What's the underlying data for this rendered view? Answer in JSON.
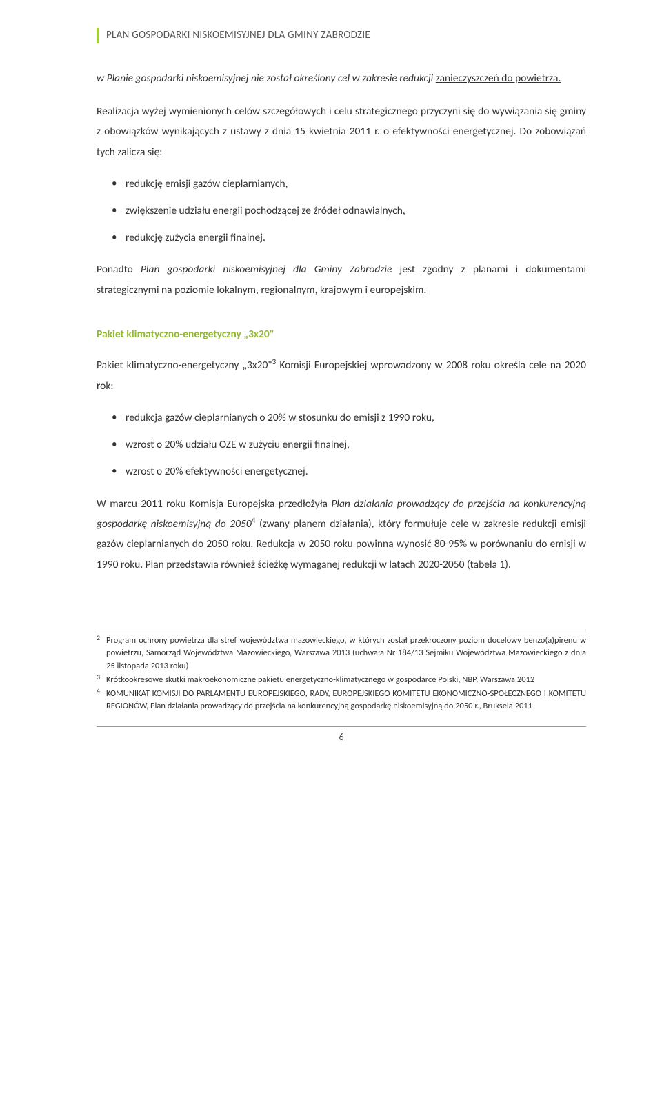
{
  "header": {
    "title": "PLAN GOSPODARKI NISKOEMISYJNEJ DLA GMINY ZABRODZIE"
  },
  "p1_a": "w Planie gospodarki niskoemisyjnej nie został określony cel w zakresie redukcji ",
  "p1_b": "zanieczyszczeń do powietrza.",
  "p2": "Realizacja wyżej wymienionych celów szczegółowych i celu strategicznego przyczyni się do wywiązania się gminy z obowiązków wynikających z ustawy z dnia 15 kwietnia 2011 r. o efektywności energetycznej. Do zobowiązań tych zalicza się:",
  "list1": {
    "i1": "redukcję emisji gazów cieplarnianych,",
    "i2": "zwiększenie udziału energii pochodzącej ze źródeł odnawialnych,",
    "i3": "redukcję zużycia energii finalnej."
  },
  "p3_a": "Ponadto ",
  "p3_b": "Plan gospodarki niskoemisyjnej dla Gminy Zabrodzie",
  "p3_c": " jest zgodny z planami i dokumentami strategicznymi na poziomie lokalnym, regionalnym, krajowym i europejskim.",
  "section_title": "Pakiet klimatyczno-energetyczny „3x20\"",
  "p4_a": "Pakiet klimatyczno-energetyczny „3x20\"",
  "p4_sup": "3",
  "p4_b": " Komisji Europejskiej wprowadzony w 2008 roku określa cele na 2020 rok:",
  "list2": {
    "i1": "redukcja gazów cieplarnianych o 20% w stosunku do emisji z 1990 roku,",
    "i2": "wzrost o 20% udziału OZE w zużyciu energii finalnej,",
    "i3": "wzrost o 20% efektywności energetycznej."
  },
  "p5_a": "W marcu 2011 roku Komisja Europejska przedłożyła ",
  "p5_b": "Plan działania prowadzący do przejścia na konkurencyjną gospodarkę niskoemisyjną do 2050",
  "p5_sup": "4",
  "p5_c": " (zwany planem działania), który formułuje cele w zakresie redukcji emisji gazów cieplarnianych do 2050 roku. Redukcja w 2050 roku powinna wynosić 80-95% w porównaniu do emisji w 1990 roku. Plan przedstawia również ścieżkę wymaganej redukcji w latach 2020-2050 (tabela 1).",
  "footnotes": {
    "f2_num": "2",
    "f2": "Program ochrony powietrza dla stref województwa mazowieckiego, w których został przekroczony poziom docelowy benzo(a)pirenu w powietrzu, Samorząd Województwa Mazowieckiego, Warszawa 2013 (uchwała Nr 184/13 Sejmiku Województwa Mazowieckiego z dnia 25 listopada 2013 roku)",
    "f3_num": "3",
    "f3": "Krótkookresowe skutki makroekonomiczne pakietu energetyczno-klimatycznego w gospodarce Polski, NBP, Warszawa 2012",
    "f4_num": "4",
    "f4": "KOMUNIKAT KOMISJI DO PARLAMENTU EUROPEJSKIEGO, RADY, EUROPEJSKIEGO KOMITETU EKONOMICZNO-SPOŁECZNEGO I KOMITETU REGIONÓW, Plan działania prowadzący do przejścia na konkurencyjną gospodarkę niskoemisyjną do 2050 r., Bruksela 2011"
  },
  "page_number": "6",
  "colors": {
    "accent": "#a3cd39",
    "section_title": "#91b733",
    "text": "#333333",
    "background": "#ffffff"
  },
  "typography": {
    "body_fontsize_pt": 12,
    "footnote_fontsize_pt": 9,
    "line_height": 1.9,
    "font_family": "Calibri"
  }
}
